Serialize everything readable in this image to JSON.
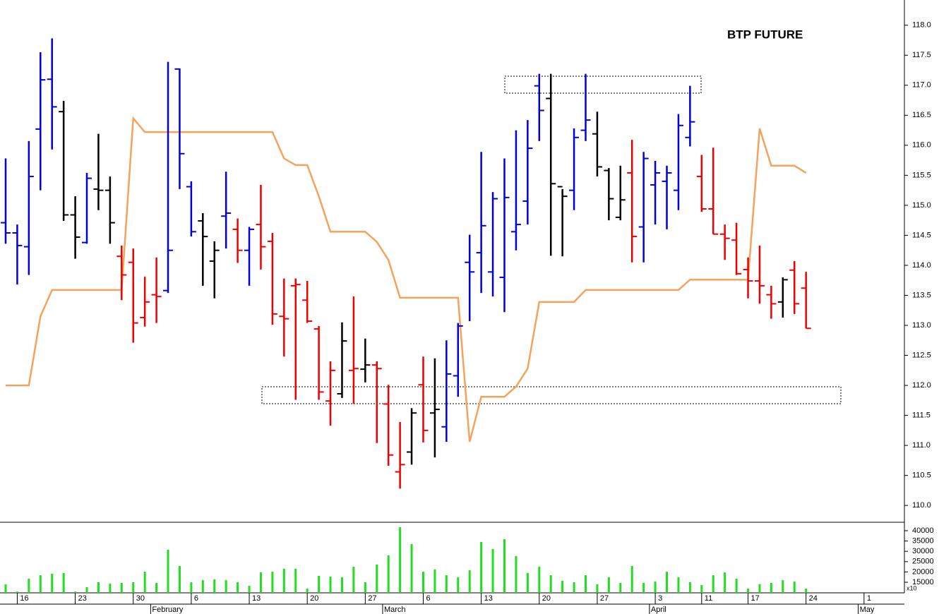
{
  "chart_data": {
    "type": "ohlc",
    "title": "BTP FUTURE",
    "categories": [
      null,
      "16",
      null,
      null,
      null,
      null,
      "23",
      null,
      null,
      null,
      null,
      "30",
      null,
      null,
      null,
      null,
      "6",
      null,
      null,
      null,
      null,
      "13",
      null,
      null,
      null,
      null,
      "20",
      null,
      null,
      null,
      null,
      "27",
      null,
      null,
      null,
      null,
      "6",
      null,
      null,
      null,
      null,
      "13",
      null,
      null,
      null,
      null,
      "20",
      null,
      null,
      null,
      null,
      "27",
      null,
      null,
      null,
      null,
      "3",
      null,
      null,
      null,
      "11",
      null,
      null,
      null,
      "17",
      null,
      null,
      null,
      null,
      "24",
      null,
      null,
      null,
      null,
      "1"
    ],
    "months": [
      null,
      null,
      null,
      null,
      null,
      null,
      null,
      null,
      null,
      null,
      null,
      null,
      null,
      "February",
      null,
      null,
      null,
      null,
      null,
      null,
      null,
      null,
      null,
      null,
      null,
      null,
      null,
      null,
      null,
      null,
      null,
      null,
      null,
      "March",
      null,
      null,
      null,
      null,
      null,
      null,
      null,
      null,
      null,
      null,
      null,
      null,
      null,
      null,
      null,
      null,
      null,
      null,
      null,
      null,
      null,
      null,
      "April",
      null,
      null,
      null,
      null,
      null,
      null,
      null,
      null,
      null,
      null,
      null,
      null,
      null,
      null,
      null,
      null,
      null,
      "May"
    ],
    "open": [
      114.71,
      114.54,
      114.31,
      116.27,
      117.1,
      116.56,
      114.84,
      114.38,
      115.27,
      115.25,
      114.15,
      114.05,
      113.13,
      113.51,
      113.58,
      117.27,
      115.31,
      114.74,
      114.07,
      114.82,
      114.6,
      114.25,
      114.68,
      114.4,
      113.15,
      113.66,
      113.42,
      112.94,
      111.74,
      111.86,
      112.25,
      112.27,
      112.34,
      111.69,
      110.56,
      110.89,
      112.01,
      111.54,
      111.31,
      112.16,
      114.05,
      114.21,
      113.89,
      113.8,
      114.56,
      115.07,
      116.99,
      116.78,
      115.31,
      115.25,
      116.25,
      116.19,
      115.58,
      114.8,
      115.54,
      114.64,
      115.34,
      115.4,
      115.25,
      116.13,
      115.48,
      114.94,
      114.52,
      114.42,
      113.93,
      113.74,
      113.51,
      113.39,
      113.92,
      113.62,
      null,
      null,
      null,
      null,
      null
    ],
    "high": [
      115.78,
      114.68,
      116.07,
      117.55,
      117.78,
      116.74,
      115.15,
      115.54,
      116.19,
      115.48,
      114.33,
      114.28,
      113.81,
      114.13,
      117.39,
      117.28,
      115.4,
      114.87,
      114.4,
      115.56,
      114.78,
      114.64,
      115.34,
      114.54,
      113.78,
      113.78,
      113.74,
      112.99,
      112.4,
      113.05,
      113.48,
      112.78,
      112.4,
      112.01,
      111.39,
      111.62,
      112.48,
      112.45,
      112.75,
      113.04,
      114.51,
      115.89,
      115.22,
      115.78,
      116.25,
      116.42,
      117.19,
      117.19,
      115.27,
      116.28,
      117.19,
      116.56,
      115.62,
      115.66,
      116.09,
      115.89,
      115.74,
      115.66,
      116.52,
      116.99,
      115.84,
      115.96,
      114.68,
      114.71,
      114.13,
      114.33,
      113.66,
      113.8,
      114.07,
      113.89,
      null,
      null,
      null,
      null,
      null
    ],
    "low": [
      114.36,
      113.68,
      113.84,
      115.25,
      115.93,
      114.74,
      114.11,
      114.36,
      114.92,
      114.36,
      113.42,
      112.71,
      112.98,
      113.04,
      113.54,
      115.27,
      114.48,
      113.66,
      113.45,
      114.28,
      114.04,
      113.66,
      113.93,
      113.01,
      112.48,
      111.76,
      113.04,
      111.76,
      111.33,
      111.79,
      111.69,
      112.05,
      111.04,
      110.66,
      110.28,
      110.68,
      111.05,
      110.8,
      111.06,
      111.81,
      113.07,
      113.54,
      113.48,
      113.22,
      114.25,
      114.68,
      116.07,
      114.16,
      114.15,
      114.92,
      116.07,
      115.48,
      114.75,
      114.75,
      114.05,
      114.05,
      114.68,
      114.6,
      114.92,
      115.98,
      114.89,
      114.52,
      114.09,
      113.84,
      113.45,
      113.36,
      113.11,
      113.13,
      113.19,
      112.95,
      null,
      null,
      null,
      null,
      null
    ],
    "close": [
      114.54,
      114.33,
      115.48,
      117.09,
      116.64,
      114.84,
      114.47,
      115.45,
      115.25,
      114.71,
      113.84,
      113.04,
      113.39,
      113.48,
      114.25,
      115.86,
      114.56,
      114.48,
      114.25,
      114.87,
      114.25,
      114.6,
      114.31,
      113.19,
      113.11,
      113.68,
      113.07,
      111.89,
      112.25,
      112.74,
      112.28,
      112.34,
      112.28,
      110.84,
      110.68,
      111.54,
      111.25,
      111.6,
      112.19,
      112.99,
      113.89,
      114.66,
      115.11,
      115.13,
      114.68,
      115.95,
      116.58,
      115.36,
      115.15,
      116.13,
      116.42,
      115.64,
      115.11,
      115.09,
      114.48,
      115.78,
      115.54,
      115.54,
      116.33,
      116.39,
      114.94,
      114.52,
      114.45,
      113.86,
      113.74,
      113.66,
      113.36,
      113.76,
      113.36,
      112.95,
      null,
      null,
      null,
      null,
      null
    ],
    "bar_colors": [
      "#0000dd",
      "#0000dd",
      "#0000dd",
      "#0000dd",
      "#0000dd",
      "#000000",
      "#000000",
      "#0000dd",
      "#000000",
      "#000000",
      "#ee0000",
      "#ee0000",
      "#ee0000",
      "#ee0000",
      "#0000dd",
      "#0000dd",
      "#0000dd",
      "#000000",
      "#000000",
      "#0000dd",
      "#ee0000",
      "#0000dd",
      "#ee0000",
      "#ee0000",
      "#ee0000",
      "#ee0000",
      "#ee0000",
      "#ee0000",
      "#ee0000",
      "#000000",
      "#ee0000",
      "#000000",
      "#ee0000",
      "#ee0000",
      "#ee0000",
      "#000000",
      "#ee0000",
      "#000000",
      "#0000dd",
      "#0000dd",
      "#0000dd",
      "#0000dd",
      "#0000dd",
      "#0000dd",
      "#0000dd",
      "#0000dd",
      "#0000dd",
      "#000000",
      "#000000",
      "#0000dd",
      "#0000dd",
      "#000000",
      "#000000",
      "#000000",
      "#ee0000",
      "#0000dd",
      "#0000dd",
      "#0000dd",
      "#0000dd",
      "#0000dd",
      "#ee0000",
      "#ee0000",
      "#ee0000",
      "#ee0000",
      "#ee0000",
      "#ee0000",
      "#ee0000",
      "#000000",
      "#ee0000",
      "#ee0000",
      null,
      null,
      null,
      null,
      null
    ],
    "line": {
      "color": "#f5a35c",
      "values": [
        112.0,
        112.0,
        112.0,
        113.15,
        113.59,
        113.59,
        113.59,
        113.59,
        113.59,
        113.59,
        113.59,
        116.45,
        116.22,
        116.22,
        116.22,
        116.22,
        116.22,
        116.22,
        116.22,
        116.22,
        116.22,
        116.22,
        116.22,
        116.22,
        115.78,
        115.67,
        115.67,
        115.15,
        114.56,
        114.56,
        114.56,
        114.56,
        114.39,
        114.09,
        113.46,
        113.46,
        113.46,
        113.46,
        113.46,
        113.46,
        111.06,
        111.81,
        111.81,
        111.81,
        111.98,
        112.28,
        113.39,
        113.39,
        113.39,
        113.39,
        113.59,
        113.59,
        113.59,
        113.59,
        113.59,
        113.59,
        113.59,
        113.59,
        113.59,
        113.76,
        113.76,
        113.76,
        113.76,
        113.76,
        113.76,
        116.28,
        115.66,
        115.66,
        115.66,
        115.54,
        null,
        null,
        null,
        null,
        null
      ]
    },
    "ylim": [
      109.72,
      118.42
    ],
    "yticks": [
      {
        "value": 110,
        "label": "110.0"
      },
      {
        "value": 110.5,
        "label": "110.5"
      },
      {
        "value": 111,
        "label": "111.0"
      },
      {
        "value": 111.5,
        "label": "111.5"
      },
      {
        "value": 112,
        "label": "112.0"
      },
      {
        "value": 112.5,
        "label": "112.5"
      },
      {
        "value": 113,
        "label": "113.0"
      },
      {
        "value": 113.5,
        "label": "113.5"
      },
      {
        "value": 114,
        "label": "114.0"
      },
      {
        "value": 114.5,
        "label": "114.5"
      },
      {
        "value": 115,
        "label": "115.0"
      },
      {
        "value": 115.5,
        "label": "115.5"
      },
      {
        "value": 116,
        "label": "116.0"
      },
      {
        "value": 116.5,
        "label": "116.5"
      },
      {
        "value": 117,
        "label": "117.0"
      },
      {
        "value": 117.5,
        "label": "117.5"
      },
      {
        "value": 118,
        "label": "118.0"
      }
    ],
    "volume": {
      "color": "#22dd22",
      "scale_label": "x10",
      "values": [
        14000,
        10500,
        16700,
        18400,
        19100,
        19500,
        10500,
        12600,
        15000,
        14300,
        14700,
        15000,
        20100,
        14700,
        30800,
        22900,
        15000,
        16000,
        16400,
        16000,
        15000,
        13300,
        19800,
        20100,
        21500,
        21500,
        11900,
        18100,
        17700,
        17400,
        22500,
        15000,
        23600,
        28000,
        41700,
        33500,
        20100,
        21200,
        18400,
        17400,
        20800,
        34500,
        31100,
        35900,
        27700,
        19500,
        22500,
        18400,
        15700,
        15000,
        18400,
        14000,
        17400,
        14700,
        22900,
        14700,
        15300,
        20100,
        17400,
        15000,
        13600,
        18400,
        19800,
        16700,
        11900,
        14000,
        14700,
        16000,
        15300,
        11900,
        null,
        null,
        null,
        null,
        null
      ],
      "ylim": [
        9860,
        44100
      ],
      "yticks": [
        15000,
        20000,
        25000,
        30000,
        35000,
        40000
      ]
    }
  }
}
